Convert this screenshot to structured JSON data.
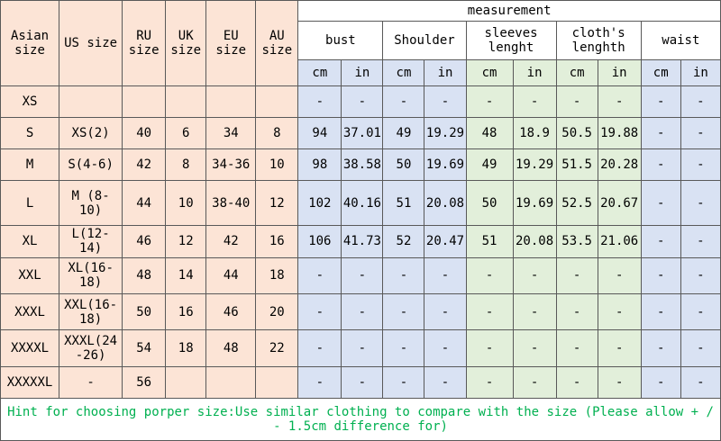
{
  "chart_data": {
    "type": "table",
    "measurement_header": "measurement",
    "size_headers": [
      "Asian size",
      "US size",
      "RU size",
      "UK size",
      "EU size",
      "AU size"
    ],
    "groups": [
      {
        "label": "bust",
        "color": "blue"
      },
      {
        "label": "Shoulder",
        "color": "blue"
      },
      {
        "label": "sleeves lenght",
        "color": "green"
      },
      {
        "label": "cloth's lenghth",
        "color": "green"
      },
      {
        "label": "waist",
        "color": "blue"
      }
    ],
    "units": [
      "cm",
      "in"
    ],
    "rows": [
      {
        "size": [
          "XS",
          "",
          "",
          "",
          "",
          ""
        ],
        "measurements": [
          "-",
          "-",
          "-",
          "-",
          "-",
          "-",
          "-",
          "-",
          "-",
          "-"
        ]
      },
      {
        "size": [
          "S",
          "XS(2)",
          "40",
          "6",
          "34",
          "8"
        ],
        "measurements": [
          "94",
          "37.01",
          "49",
          "19.29",
          "48",
          "18.9",
          "50.5",
          "19.88",
          "-",
          "-"
        ]
      },
      {
        "size": [
          "M",
          "S(4-6)",
          "42",
          "8",
          "34-36",
          "10"
        ],
        "measurements": [
          "98",
          "38.58",
          "50",
          "19.69",
          "49",
          "19.29",
          "51.5",
          "20.28",
          "-",
          "-"
        ]
      },
      {
        "size": [
          "L",
          "M (8-10)",
          "44",
          "10",
          "38-40",
          "12"
        ],
        "measurements": [
          "102",
          "40.16",
          "51",
          "20.08",
          "50",
          "19.69",
          "52.5",
          "20.67",
          "-",
          "-"
        ]
      },
      {
        "size": [
          "XL",
          "L(12-14)",
          "46",
          "12",
          "42",
          "16"
        ],
        "measurements": [
          "106",
          "41.73",
          "52",
          "20.47",
          "51",
          "20.08",
          "53.5",
          "21.06",
          "-",
          "-"
        ]
      },
      {
        "size": [
          "XXL",
          "XL(16-18)",
          "48",
          "14",
          "44",
          "18"
        ],
        "measurements": [
          "-",
          "-",
          "-",
          "-",
          "-",
          "-",
          "-",
          "-",
          "-",
          "-"
        ]
      },
      {
        "size": [
          "XXXL",
          "XXL(16-18)",
          "50",
          "16",
          "46",
          "20"
        ],
        "measurements": [
          "-",
          "-",
          "-",
          "-",
          "-",
          "-",
          "-",
          "-",
          "-",
          "-"
        ]
      },
      {
        "size": [
          "XXXXL",
          "XXXL(24-26)",
          "54",
          "18",
          "48",
          "22"
        ],
        "measurements": [
          "-",
          "-",
          "-",
          "-",
          "-",
          "-",
          "-",
          "-",
          "-",
          "-"
        ]
      },
      {
        "size": [
          "XXXXXL",
          "-",
          "56",
          "",
          "",
          ""
        ],
        "measurements": [
          "-",
          "-",
          "-",
          "-",
          "-",
          "-",
          "-",
          "-",
          "-",
          "-"
        ]
      }
    ],
    "hint": "Hint for choosing porper size:Use similar clothing to compare with the size (Please allow + / - 1.5cm difference for)"
  },
  "colors": {
    "peach": "#fce4d6",
    "blue": "#d9e2f3",
    "green": "#e2efda",
    "hint_text": "#00b050",
    "border": "#595959"
  }
}
